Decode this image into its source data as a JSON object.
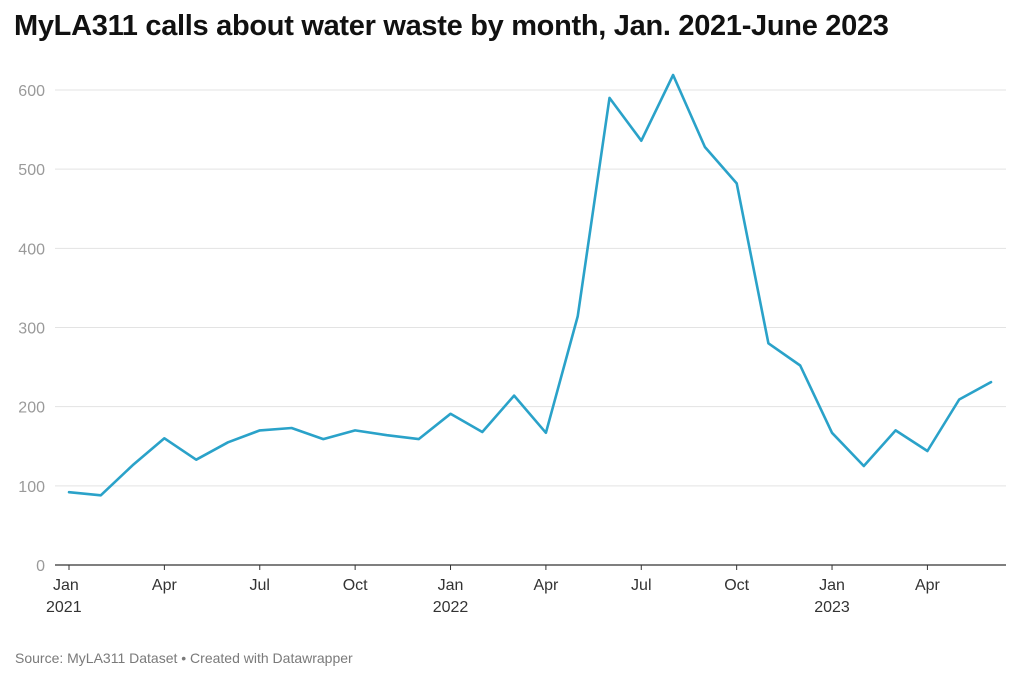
{
  "chart_data": {
    "type": "line",
    "title": "MyLA311 calls about water waste by month, Jan. 2021-June 2023",
    "source": "Source: MyLA311 Dataset • Created with Datawrapper",
    "xlabel": "",
    "ylabel": "",
    "ylim": [
      0,
      620
    ],
    "yticks": [
      0,
      100,
      200,
      300,
      400,
      500,
      600
    ],
    "grid": true,
    "color": "#2aa2c9",
    "x_ticks": [
      {
        "index": 0,
        "label": "Jan",
        "sublabel": "2021"
      },
      {
        "index": 3,
        "label": "Apr",
        "sublabel": ""
      },
      {
        "index": 6,
        "label": "Jul",
        "sublabel": ""
      },
      {
        "index": 9,
        "label": "Oct",
        "sublabel": ""
      },
      {
        "index": 12,
        "label": "Jan",
        "sublabel": "2022"
      },
      {
        "index": 15,
        "label": "Apr",
        "sublabel": ""
      },
      {
        "index": 18,
        "label": "Jul",
        "sublabel": ""
      },
      {
        "index": 21,
        "label": "Oct",
        "sublabel": ""
      },
      {
        "index": 24,
        "label": "Jan",
        "sublabel": "2023"
      },
      {
        "index": 27,
        "label": "Apr",
        "sublabel": ""
      }
    ],
    "x": [
      "2021-01",
      "2021-02",
      "2021-03",
      "2021-04",
      "2021-05",
      "2021-06",
      "2021-07",
      "2021-08",
      "2021-09",
      "2021-10",
      "2021-11",
      "2021-12",
      "2022-01",
      "2022-02",
      "2022-03",
      "2022-04",
      "2022-05",
      "2022-06",
      "2022-07",
      "2022-08",
      "2022-09",
      "2022-10",
      "2022-11",
      "2022-12",
      "2023-01",
      "2023-02",
      "2023-03",
      "2023-04",
      "2023-05",
      "2023-06"
    ],
    "series": [
      {
        "values": [
          92,
          88,
          126,
          160,
          133,
          155,
          170,
          173,
          159,
          170,
          164,
          159,
          191,
          168,
          214,
          167,
          314,
          590,
          536,
          619,
          528,
          482,
          280,
          252,
          167,
          125,
          170,
          144,
          209,
          231
        ]
      }
    ]
  }
}
